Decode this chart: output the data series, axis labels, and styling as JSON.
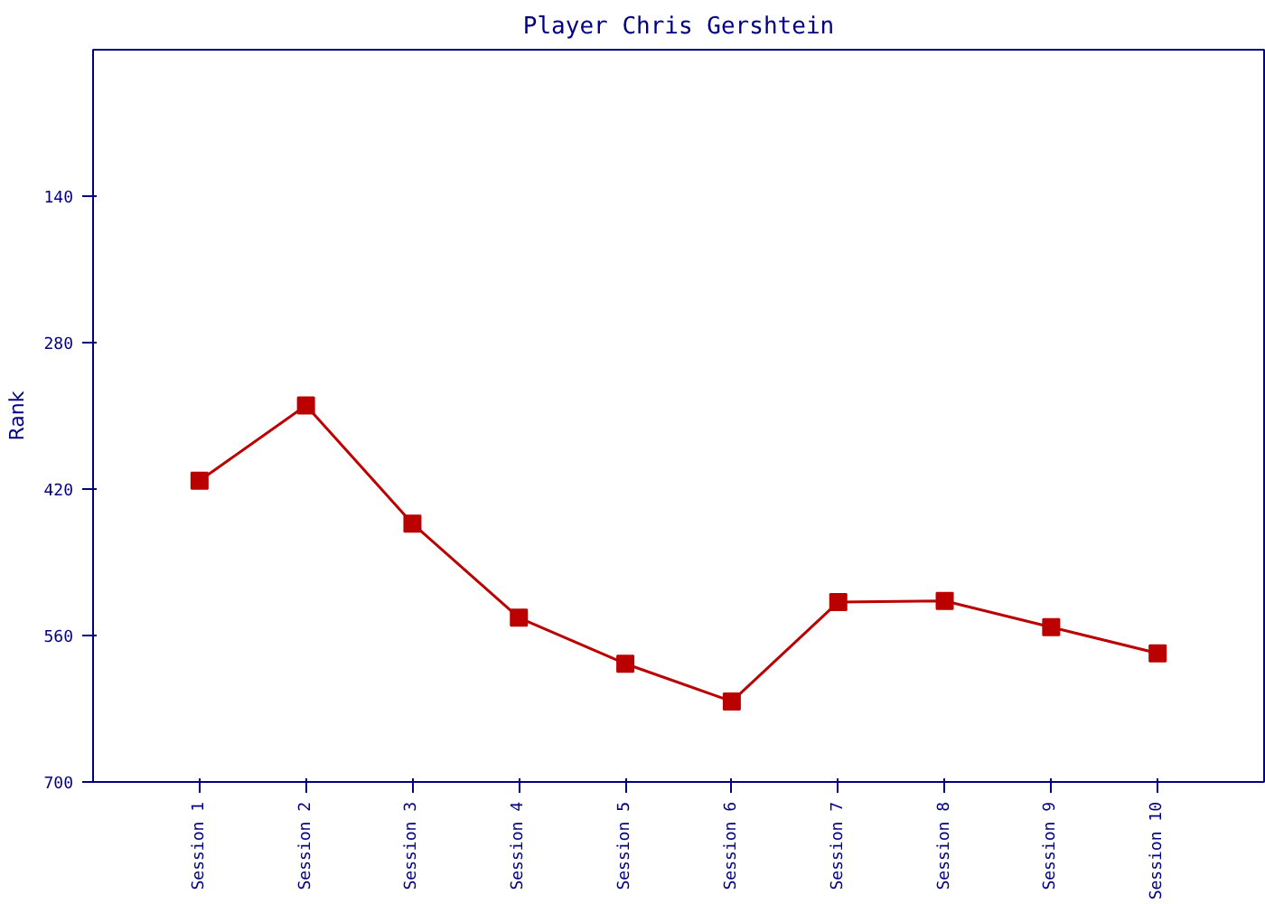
{
  "chart_data": {
    "type": "line",
    "title": "Player Chris Gershtein",
    "ylabel": "Rank",
    "categories": [
      "Session 1",
      "Session 2",
      "Session 3",
      "Session 4",
      "Session 5",
      "Session 6",
      "Session 7",
      "Session 8",
      "Session 9",
      "Session 10"
    ],
    "series": [
      {
        "color": "#bb0000",
        "values": [
          412,
          340,
          453,
          543,
          587,
          623,
          528,
          527,
          552,
          577
        ]
      }
    ],
    "ylim": [
      700,
      0
    ],
    "yticks": [
      140,
      280,
      420,
      560,
      700
    ],
    "marker": "square",
    "grid": false
  }
}
